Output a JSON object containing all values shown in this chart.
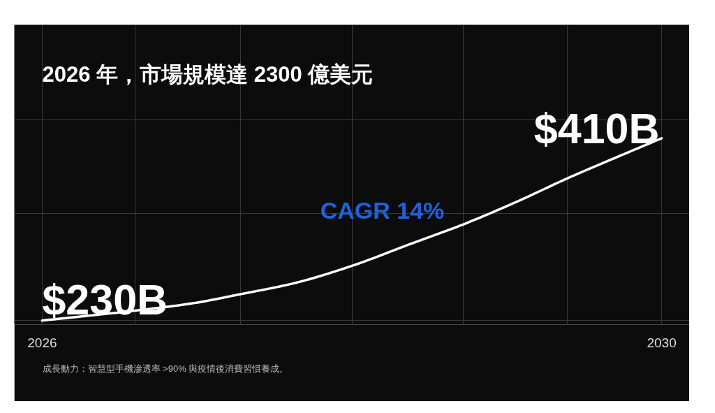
{
  "chart_data": {
    "type": "line",
    "title": "2026 年，市場規模達 2300 億美元",
    "x": [
      2026,
      2026.61,
      2026.97,
      2027.28,
      2027.63,
      2028,
      2028.35,
      2028.72,
      2029.06,
      2029.4,
      2029.69,
      2030
    ],
    "series": [
      {
        "color": "#ffffff",
        "values": [
          230,
          240,
          247,
          256,
          267,
          284,
          304,
          325,
          347,
          371,
          390,
          410
        ],
        "value_labels": [
          "$230B",
          null,
          null,
          null,
          null,
          null,
          null,
          null,
          null,
          null,
          null,
          "$410B"
        ]
      }
    ],
    "xlim": [
      2025.82,
      2030.18
    ],
    "xticks": [
      2026,
      {
        "value": 2026.6,
        "label": null
      },
      {
        "value": 2027.28,
        "label": null
      },
      {
        "value": 2028,
        "label": null
      },
      {
        "value": 2028.72,
        "label": null
      },
      {
        "value": 2029.39,
        "label": null
      },
      2030
    ],
    "ylim": [
      226,
      522
    ],
    "yticks": [
      {
        "value": 230,
        "label": null
      },
      {
        "value": 336,
        "label": null
      },
      {
        "value": 428,
        "label": null
      }
    ],
    "tick_labels": "x",
    "grid": true,
    "line_style": "solid",
    "annotations": [
      "CAGR 14%",
      "成長動力：智慧型手機滲透率 >90% 與疫情後消費習慣養成。"
    ]
  }
}
